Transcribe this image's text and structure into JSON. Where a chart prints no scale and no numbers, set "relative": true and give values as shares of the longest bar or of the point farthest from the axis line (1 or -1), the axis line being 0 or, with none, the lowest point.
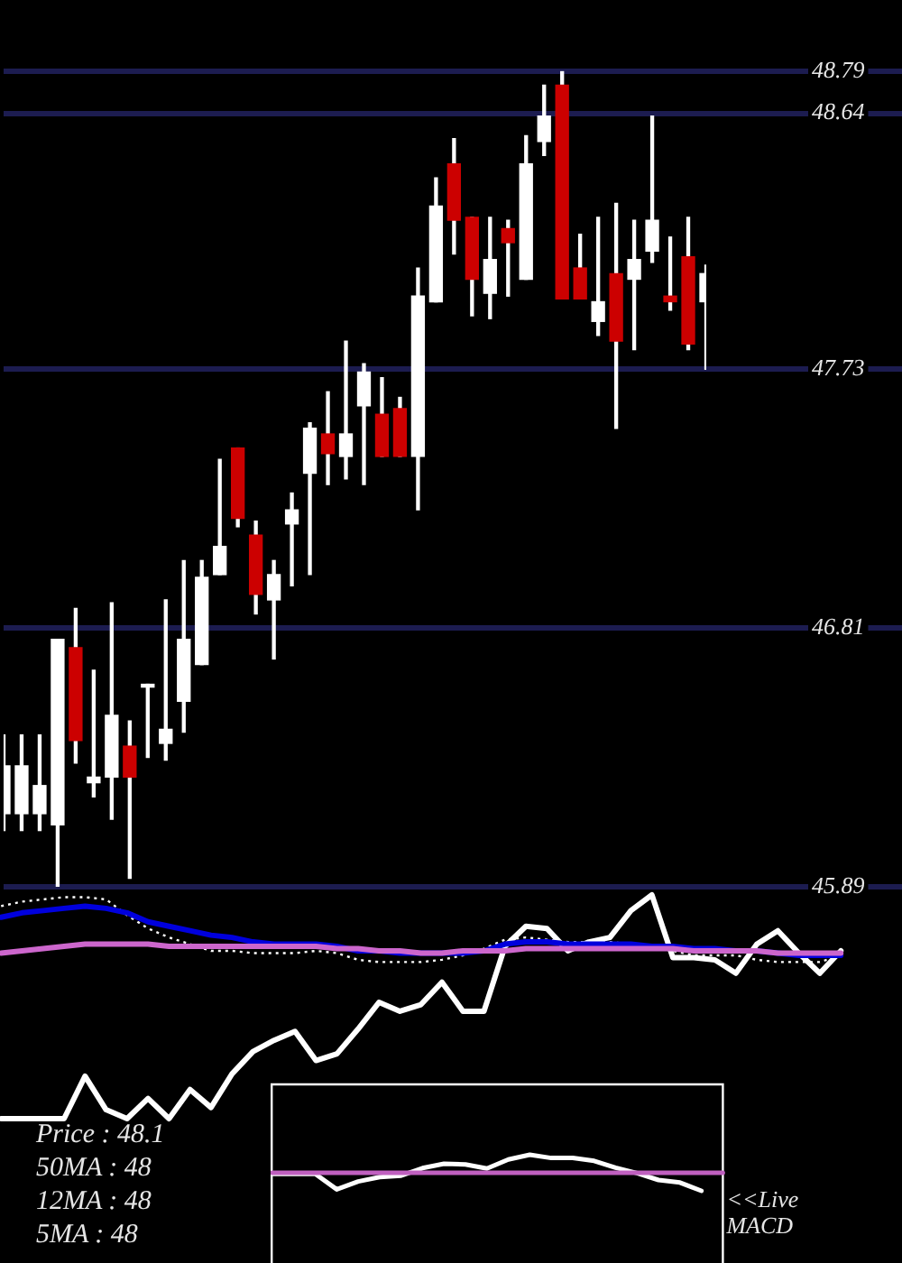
{
  "chart_data": [
    {
      "type": "candlestick",
      "categories": [
        null,
        null,
        null,
        null,
        null,
        null,
        null,
        null,
        null,
        null,
        null,
        null,
        null,
        null,
        null,
        null,
        null,
        null,
        null,
        null,
        null,
        null,
        null,
        null,
        null,
        null,
        null,
        null,
        null,
        null,
        null,
        null,
        null,
        null,
        null,
        null,
        null,
        null,
        null,
        null
      ],
      "ohlc": [
        [
          46.15,
          46.43,
          46.09,
          46.32
        ],
        [
          46.15,
          46.43,
          46.09,
          46.32
        ],
        [
          46.15,
          46.43,
          46.09,
          46.25
        ],
        [
          46.11,
          46.77,
          45.89,
          46.77
        ],
        [
          46.74,
          46.88,
          46.33,
          46.41
        ],
        [
          46.26,
          46.66,
          46.21,
          46.28
        ],
        [
          46.28,
          46.9,
          46.13,
          46.5
        ],
        [
          46.39,
          46.48,
          45.92,
          46.28
        ],
        [
          46.6,
          46.61,
          46.35,
          46.61
        ],
        [
          46.4,
          46.91,
          46.34,
          46.45
        ],
        [
          46.55,
          47.05,
          46.44,
          46.77
        ],
        [
          46.68,
          47.05,
          46.68,
          46.99
        ],
        [
          47.0,
          47.41,
          47.0,
          47.1
        ],
        [
          47.45,
          47.45,
          47.17,
          47.2
        ],
        [
          47.14,
          47.19,
          46.86,
          46.93
        ],
        [
          46.91,
          47.05,
          46.7,
          47.0
        ],
        [
          47.18,
          47.29,
          46.96,
          47.23
        ],
        [
          47.36,
          47.54,
          47.0,
          47.52
        ],
        [
          47.5,
          47.65,
          47.32,
          47.43
        ],
        [
          47.42,
          47.83,
          47.34,
          47.5
        ],
        [
          47.6,
          47.75,
          47.32,
          47.72
        ],
        [
          47.57,
          47.7,
          47.42,
          47.42
        ],
        [
          47.59,
          47.63,
          47.42,
          47.42
        ],
        [
          47.42,
          48.09,
          47.23,
          47.99
        ],
        [
          47.97,
          48.41,
          47.97,
          48.31
        ],
        [
          48.46,
          48.55,
          48.14,
          48.26
        ],
        [
          48.27,
          48.27,
          47.92,
          48.05
        ],
        [
          48.0,
          48.27,
          47.91,
          48.12
        ],
        [
          48.23,
          48.26,
          47.99,
          48.18
        ],
        [
          48.05,
          48.56,
          48.05,
          48.46
        ],
        [
          48.54,
          48.74,
          48.49,
          48.63
        ],
        [
          48.74,
          48.79,
          47.98,
          47.98
        ],
        [
          48.09,
          48.21,
          47.98,
          47.98
        ],
        [
          47.9,
          48.27,
          47.85,
          47.97
        ],
        [
          48.07,
          48.32,
          47.52,
          47.83
        ],
        [
          48.05,
          48.26,
          47.8,
          48.12
        ],
        [
          48.15,
          48.63,
          48.11,
          48.26
        ],
        [
          47.99,
          48.2,
          47.94,
          47.97
        ],
        [
          48.13,
          48.27,
          47.8,
          47.82
        ],
        [
          47.97,
          48.1,
          47.73,
          48.07
        ]
      ],
      "colors": [
        "#ffffff",
        "#ffffff",
        "#ffffff",
        "#ffffff",
        "#cc0000",
        "#ffffff",
        "#ffffff",
        "#cc0000",
        "#ffffff",
        "#ffffff",
        "#ffffff",
        "#ffffff",
        "#ffffff",
        "#cc0000",
        "#cc0000",
        "#ffffff",
        "#ffffff",
        "#ffffff",
        "#cc0000",
        "#ffffff",
        "#ffffff",
        "#cc0000",
        "#cc0000",
        "#ffffff",
        "#ffffff",
        "#cc0000",
        "#cc0000",
        "#ffffff",
        "#cc0000",
        "#ffffff",
        "#ffffff",
        "#cc0000",
        "#cc0000",
        "#ffffff",
        "#cc0000",
        "#ffffff",
        "#ffffff",
        "#cc0000",
        "#cc0000",
        "#ffffff"
      ],
      "ylim": [
        45.89,
        48.79
      ],
      "yticks": [
        45.89,
        46.81,
        47.73,
        48.64,
        48.79
      ],
      "grid": true,
      "tick_labels": "y"
    },
    {
      "type": "line",
      "relative": true,
      "categories": [
        null,
        null,
        null,
        null,
        null,
        null,
        null,
        null,
        null,
        null,
        null,
        null,
        null,
        null,
        null,
        null,
        null,
        null,
        null,
        null,
        null,
        null,
        null,
        null,
        null,
        null,
        null,
        null,
        null,
        null,
        null,
        null,
        null,
        null,
        null,
        null,
        null,
        null,
        null,
        null,
        null
      ],
      "series": [
        {
          "color": "#cc66cc",
          "values": [
            0.74,
            0.75,
            0.76,
            0.77,
            0.78,
            0.78,
            0.78,
            0.78,
            0.77,
            0.77,
            0.77,
            0.77,
            0.77,
            0.77,
            0.77,
            0.77,
            0.76,
            0.76,
            0.75,
            0.75,
            0.74,
            0.74,
            0.75,
            0.75,
            0.75,
            0.76,
            0.76,
            0.76,
            0.76,
            0.76,
            0.76,
            0.76,
            0.76,
            0.75,
            0.75,
            0.75,
            0.75,
            0.74,
            0.74,
            0.74,
            0.74
          ]
        },
        {
          "color": "#0000dd",
          "values": [
            0.9,
            0.92,
            0.93,
            0.94,
            0.95,
            0.94,
            0.92,
            0.88,
            0.86,
            0.84,
            0.82,
            0.81,
            0.79,
            0.78,
            0.78,
            0.78,
            0.77,
            0.75,
            0.75,
            0.74,
            0.74,
            0.74,
            0.74,
            0.75,
            0.78,
            0.79,
            0.79,
            0.78,
            0.78,
            0.78,
            0.78,
            0.77,
            0.77,
            0.76,
            0.76,
            0.75,
            0.75,
            0.74,
            0.73,
            0.73,
            0.73
          ]
        },
        {
          "color": "#ffffff",
          "line_style": "dotted",
          "values": [
            0.95,
            0.97,
            0.98,
            0.99,
            0.99,
            0.98,
            0.91,
            0.85,
            0.81,
            0.78,
            0.75,
            0.75,
            0.74,
            0.74,
            0.74,
            0.75,
            0.74,
            0.71,
            0.7,
            0.7,
            0.7,
            0.71,
            0.73,
            0.76,
            0.8,
            0.81,
            0.8,
            0.79,
            0.79,
            0.79,
            0.78,
            0.77,
            0.75,
            0.73,
            0.73,
            0.73,
            0.71,
            0.7,
            0.7,
            0.7,
            0.73
          ]
        },
        {
          "color": "#ffffff",
          "values": [
            0,
            0,
            0,
            0,
            0.19,
            0.04,
            0,
            0.09,
            0,
            0.13,
            0.05,
            0.2,
            0.3,
            0.35,
            0.39,
            0.26,
            0.29,
            0.4,
            0.52,
            0.48,
            0.51,
            0.61,
            0.48,
            0.48,
            0.77,
            0.86,
            0.85,
            0.75,
            0.79,
            0.81,
            0.93,
            1,
            0.72,
            0.72,
            0.71,
            0.65,
            0.78,
            0.84,
            0.74,
            0.65,
            0.75
          ]
        }
      ],
      "annotations": [
        "Price : 48.1",
        "50MA : 48",
        "12MA : 48",
        "5MA : 48"
      ]
    },
    {
      "type": "line",
      "relative": true,
      "categories": [
        null,
        null,
        null,
        null,
        null,
        null,
        null,
        null,
        null,
        null,
        null,
        null,
        null,
        null,
        null,
        null,
        null,
        null,
        null,
        null,
        null,
        null
      ],
      "series": [
        {
          "color": "#c060c0",
          "values": [
            0.5,
            0.5,
            0.5,
            0.5,
            0.5,
            0.5,
            0.5,
            0.5,
            0.5,
            0.5,
            0.5,
            0.5,
            0.5,
            0.5,
            0.5,
            0.5,
            0.5,
            0.5,
            0.5,
            0.5,
            0.5,
            0.5
          ]
        },
        {
          "color": "#ffffff",
          "values": [
            0.47,
            0.47,
            0.47,
            0.04,
            0.26,
            0.38,
            0.42,
            0.63,
            0.75,
            0.73,
            0.62,
            0.87,
            1,
            0.91,
            0.91,
            0.83,
            0.64,
            0.49,
            0.3,
            0.23,
            0,
            null
          ]
        }
      ],
      "annotations": [
        "<<Live MACD"
      ]
    }
  ]
}
